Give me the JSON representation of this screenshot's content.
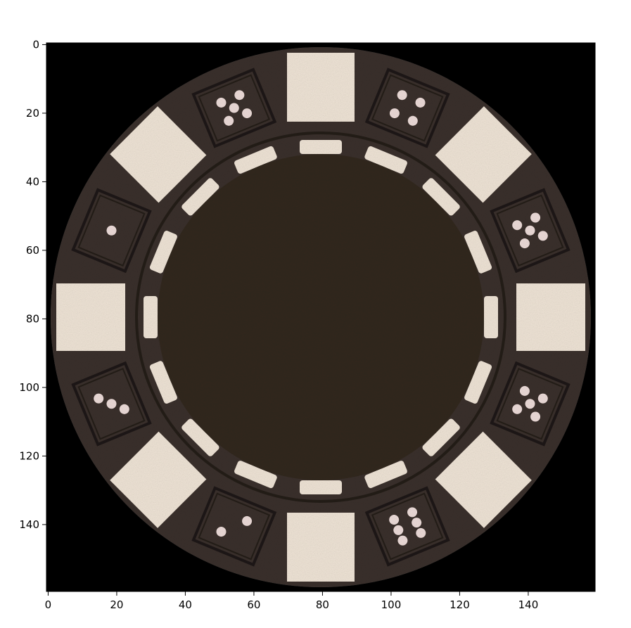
{
  "figure": {
    "x_axis": {
      "range": [
        0,
        159
      ],
      "ticks": [
        "0",
        "20",
        "40",
        "60",
        "80",
        "100",
        "120",
        "140"
      ]
    },
    "y_axis": {
      "range": [
        0,
        159
      ],
      "inverted": true,
      "ticks": [
        "0",
        "20",
        "40",
        "60",
        "80",
        "100",
        "120",
        "140"
      ]
    },
    "image": {
      "subject": "black-poker-chip-icon",
      "background_color": "#000000",
      "chip_color": "#3a302c",
      "inlay_color": "#32291f",
      "stripe_color": "#efe4d6",
      "dot_color": "#eddcd9"
    }
  }
}
